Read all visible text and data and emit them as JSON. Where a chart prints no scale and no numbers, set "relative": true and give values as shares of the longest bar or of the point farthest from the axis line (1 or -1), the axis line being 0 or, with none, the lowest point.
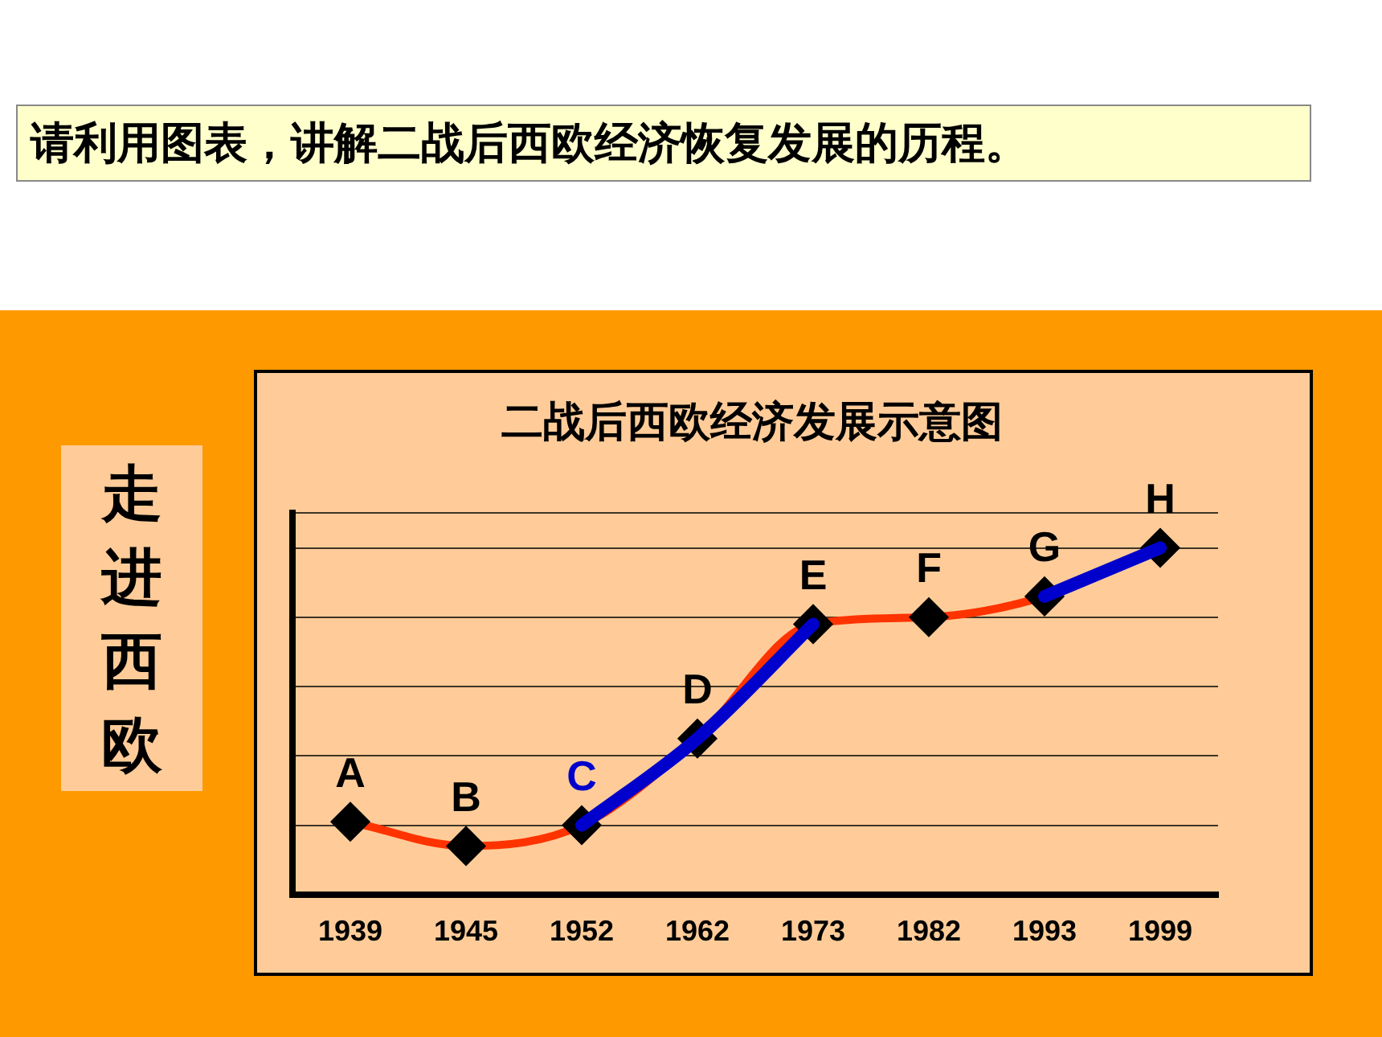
{
  "chart_data": {
    "type": "line",
    "title": "二战后西欧经济发展示意图",
    "relative": true,
    "categories": [
      "1939",
      "1945",
      "1952",
      "1962",
      "1973",
      "1982",
      "1993",
      "1999"
    ],
    "series": [
      {
        "color": "#ff3300",
        "values": [
          0.21,
          0.14,
          0.2,
          0.45,
          0.78,
          0.8,
          0.86,
          1.0
        ],
        "marker": "diamond"
      },
      {
        "type": "line",
        "color": "#0000cc",
        "values": [
          null,
          null,
          0.2,
          0.45,
          0.78,
          null,
          0.86,
          1.0
        ],
        "marker": "none"
      }
    ],
    "annotations": [
      {
        "text": "A",
        "x": "1939",
        "y": 0.21
      },
      {
        "text": "B",
        "x": "1945",
        "y": 0.14
      },
      {
        "text": "C",
        "x": "1952",
        "y": 0.2
      },
      {
        "text": "D",
        "x": "1962",
        "y": 0.45
      },
      {
        "text": "E",
        "x": "1973",
        "y": 0.78
      },
      {
        "text": "F",
        "x": "1982",
        "y": 0.8
      },
      {
        "text": "G",
        "x": "1993",
        "y": 0.86
      },
      {
        "text": "H",
        "x": "1999",
        "y": 1.0
      },
      "请利用图表，讲解二战后西欧经济恢复发展的历程。",
      "走进西欧"
    ],
    "grid": "y",
    "legend": false
  }
}
